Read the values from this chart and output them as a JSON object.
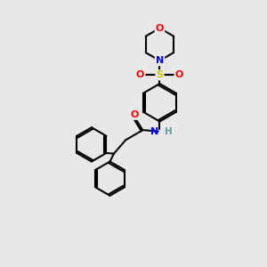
{
  "background_color": "#e8e8e8",
  "bond_color": "#000000",
  "atom_colors": {
    "O": "#ff0000",
    "N": "#0000ff",
    "S": "#cccc00",
    "H": "#5f9ea0",
    "C": "#000000"
  },
  "figsize": [
    3.0,
    3.0
  ],
  "dpi": 100
}
